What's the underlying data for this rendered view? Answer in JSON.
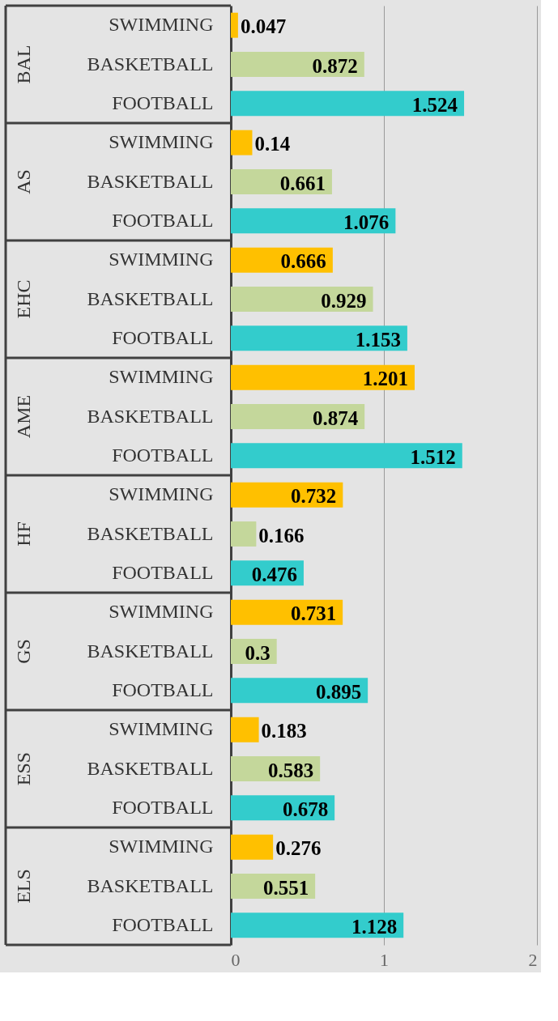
{
  "chart_data": {
    "type": "bar",
    "orientation": "horizontal",
    "categories": [
      "SWIMMING",
      "BASKETBALL",
      "FOOTBALL",
      "SWIMMING",
      "BASKETBALL",
      "FOOTBALL",
      "SWIMMING",
      "BASKETBALL",
      "FOOTBALL",
      "SWIMMING",
      "BASKETBALL",
      "FOOTBALL",
      "SWIMMING",
      "BASKETBALL",
      "FOOTBALL",
      "SWIMMING",
      "BASKETBALL",
      "FOOTBALL",
      "SWIMMING",
      "BASKETBALL",
      "FOOTBALL",
      "SWIMMING",
      "BASKETBALL",
      "FOOTBALL"
    ],
    "values": [
      0.047,
      0.872,
      1.524,
      0.14,
      0.661,
      1.076,
      0.666,
      0.929,
      1.153,
      1.201,
      0.874,
      1.512,
      0.732,
      0.166,
      0.476,
      0.731,
      0.3,
      0.895,
      0.183,
      0.583,
      0.678,
      0.276,
      0.551,
      1.128
    ],
    "colors": [
      "#ffc000",
      "#c4d79b",
      "#33cccc",
      "#ffc000",
      "#c4d79b",
      "#33cccc",
      "#ffc000",
      "#c4d79b",
      "#33cccc",
      "#ffc000",
      "#c4d79b",
      "#33cccc",
      "#ffc000",
      "#c4d79b",
      "#33cccc",
      "#ffc000",
      "#c4d79b",
      "#33cccc",
      "#ffc000",
      "#c4d79b",
      "#33cccc",
      "#ffc000",
      "#c4d79b",
      "#33cccc"
    ],
    "annotations": [
      "BAL",
      "AS",
      "EHC",
      "AME",
      "HF",
      "GS",
      "ESS",
      "ELS"
    ],
    "xlim": [
      0,
      2
    ],
    "xticks": [
      0,
      1,
      2
    ],
    "grid": "x",
    "legend": false,
    "data_labels": true
  }
}
